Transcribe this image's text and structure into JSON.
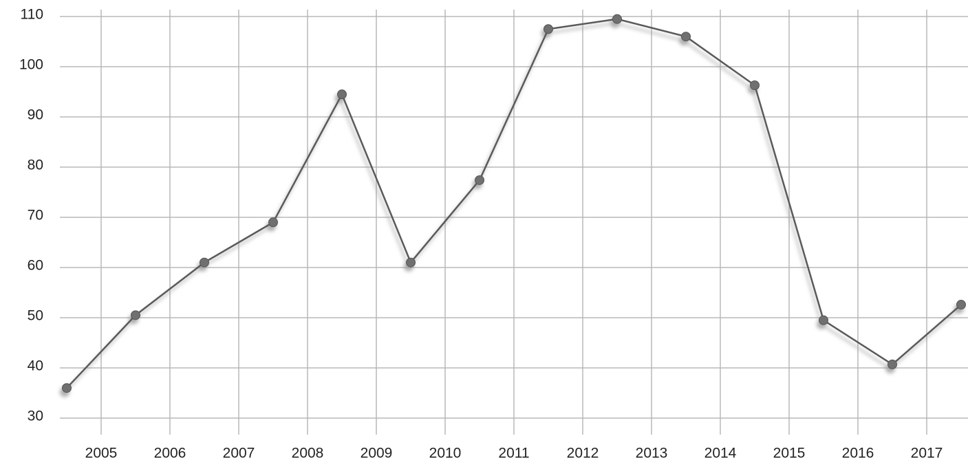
{
  "chart_data": {
    "type": "line",
    "x": [
      2004.5,
      2005.5,
      2006.5,
      2007.5,
      2008.5,
      2009.5,
      2010.5,
      2011.5,
      2012.5,
      2013.5,
      2014.5,
      2015.5,
      2016.5,
      2017.5
    ],
    "series": [
      {
        "color": "#5a5a5a",
        "values": [
          36,
          50.5,
          61,
          69,
          94.5,
          61,
          77.4,
          107.5,
          109.5,
          106,
          96.3,
          49.5,
          40.7,
          52.6
        ]
      }
    ],
    "xlim": [
      2004.4,
      2017.6
    ],
    "xticks": [
      2005,
      2006,
      2007,
      2008,
      2009,
      2010,
      2011,
      2012,
      2013,
      2014,
      2015,
      2016,
      2017
    ],
    "ylim": [
      30,
      110
    ],
    "yticks": [
      30,
      40,
      50,
      60,
      70,
      80,
      90,
      100,
      110
    ],
    "grid": true
  }
}
